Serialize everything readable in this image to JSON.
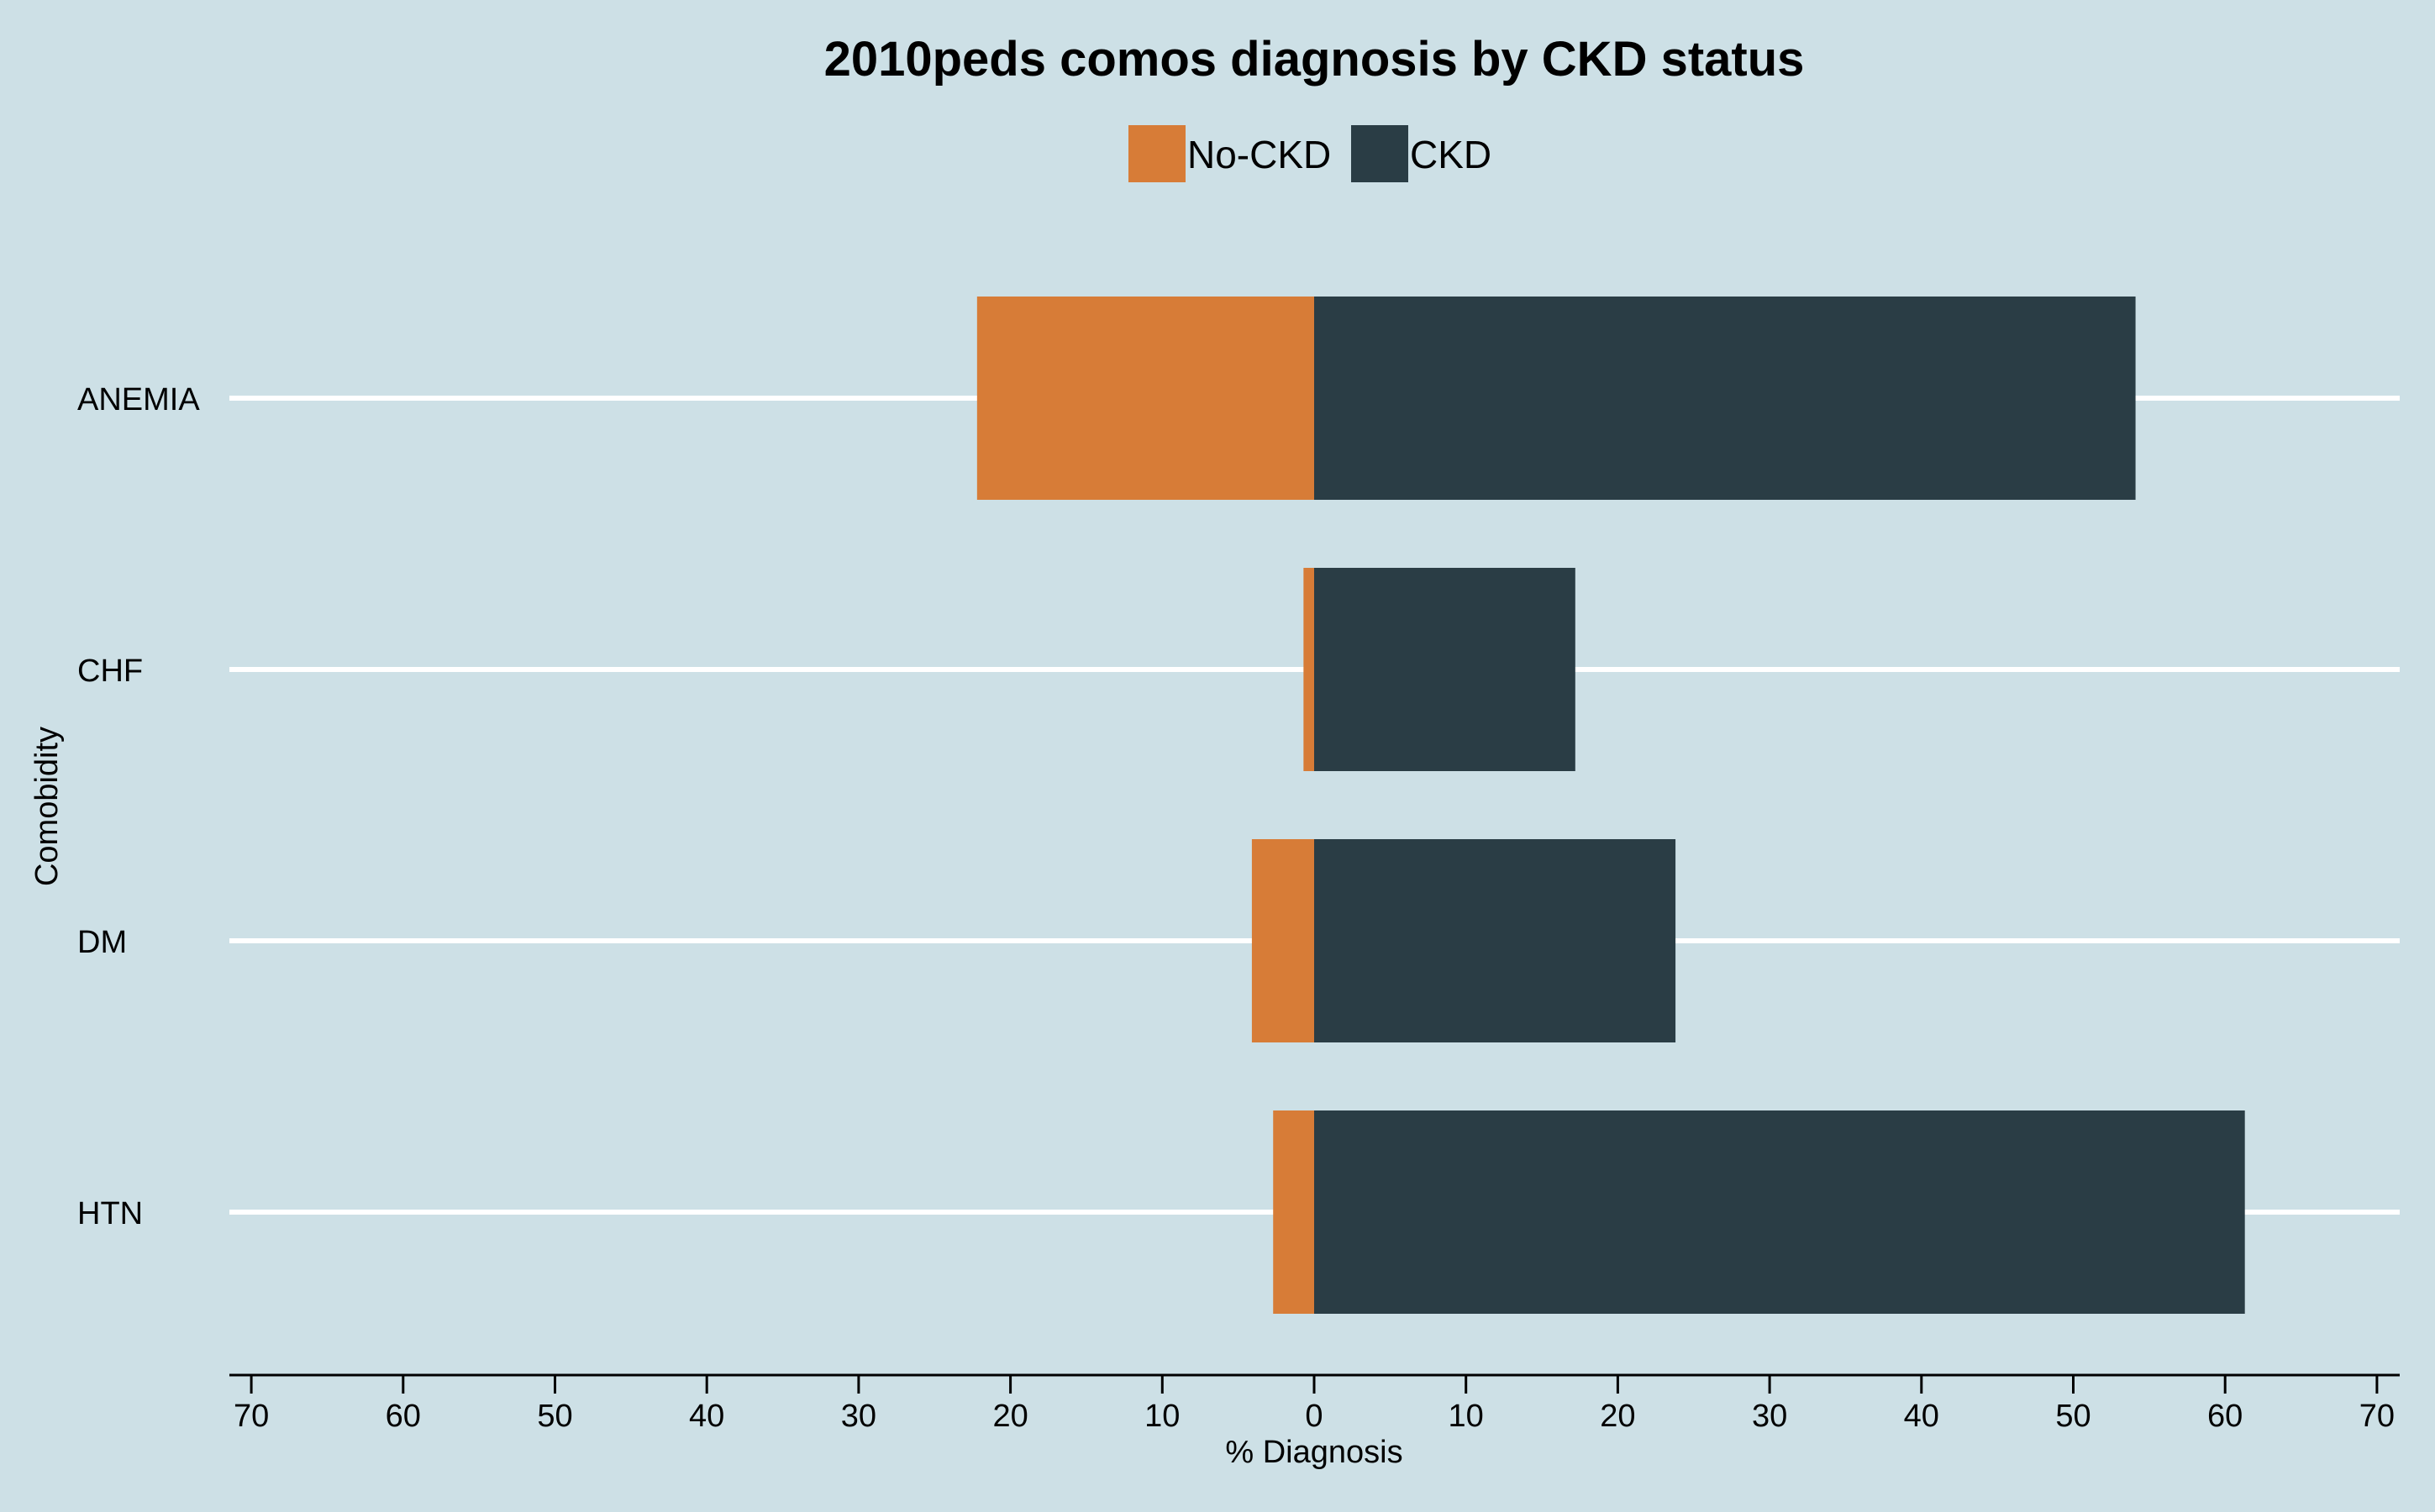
{
  "chart_data": {
    "type": "bar",
    "orientation": "horizontal-diverging",
    "title": "2010peds comos diagnosis by CKD status",
    "xlabel": "% Diagnosis",
    "ylabel": "Comobidity",
    "categories": [
      "ANEMIA",
      "CHF",
      "DM",
      "HTN"
    ],
    "series": [
      {
        "name": "No-CKD",
        "color": "#d77c37",
        "side": "left",
        "values": [
          22.2,
          0.7,
          4.1,
          2.7
        ]
      },
      {
        "name": "CKD",
        "color": "#2a3d45",
        "side": "right",
        "values": [
          54.1,
          17.2,
          23.8,
          61.3
        ]
      }
    ],
    "xlim": [
      -70,
      70
    ],
    "x_ticks": [
      -70,
      -60,
      -50,
      -40,
      -30,
      -20,
      -10,
      0,
      10,
      20,
      30,
      40,
      50,
      60,
      70
    ],
    "x_tick_labels": [
      "70",
      "60",
      "50",
      "40",
      "30",
      "20",
      "10",
      "0",
      "10",
      "20",
      "30",
      "40",
      "50",
      "60",
      "70"
    ],
    "legend_position": "top-center",
    "grid": "horizontal lines at categories",
    "background_color": "#cde0e6",
    "grid_color": "#ffffff"
  }
}
